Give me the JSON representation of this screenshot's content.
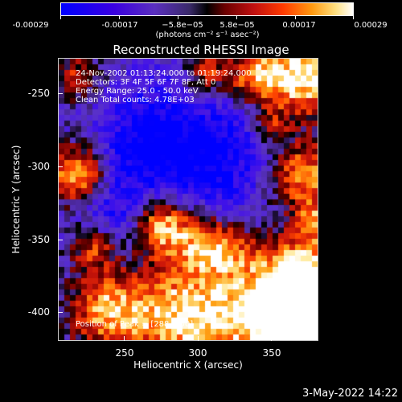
{
  "colorbar": {
    "tick_labels": [
      "-0.00029",
      "-0.00017",
      "−5.8e−05",
      "5.8e−05",
      "0.00017",
      "0.00029"
    ],
    "units": "(photons cm⁻² s⁻¹ asec⁻²)"
  },
  "plot": {
    "title": "Reconstructed RHESSI Image",
    "info_lines": [
      "24-Nov-2002 01:13:24.000 to 01:19:24.000",
      "Detectors: 3F 4F 5F 6F 7F 8F, Att 0",
      "Energy Range: 25.0 - 50.0 keV",
      "Clean    Total counts: 4.78E+03"
    ],
    "peak_text": "Position of Peak = [288,-400]",
    "xlabel": "Heliocentric X (arcsec)",
    "ylabel": "Heliocentric Y (arcsec)",
    "xticks": [
      "250",
      "300",
      "350"
    ],
    "yticks": [
      "-250",
      "-300",
      "-350",
      "-400"
    ]
  },
  "footer": {
    "date": "3-May-2022 14:22"
  }
}
